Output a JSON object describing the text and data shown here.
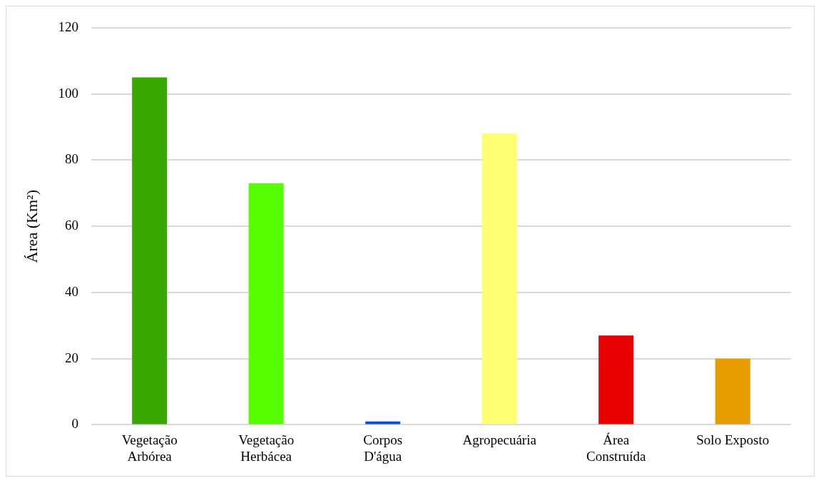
{
  "chart_data": {
    "type": "bar",
    "ylabel": "Área (Km²)",
    "categories": [
      "Vegetação Arbórea",
      "Vegetação Herbácea",
      "Corpos D'água",
      "Agropecuária",
      "Área Construída",
      "Solo Exposto"
    ],
    "values": [
      105,
      73,
      1,
      88,
      27,
      20
    ],
    "colors": [
      "#38a800",
      "#55ff00",
      "#0050d0",
      "#ffff73",
      "#e60000",
      "#e89c00"
    ],
    "ylim": [
      0,
      120
    ],
    "yticks": [
      0,
      20,
      40,
      60,
      80,
      100,
      120
    ],
    "grid": "y",
    "legend": false
  }
}
